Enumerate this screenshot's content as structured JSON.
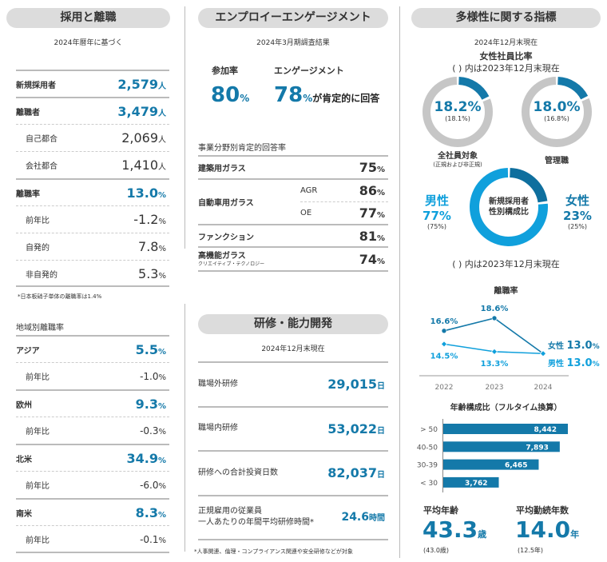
{
  "hiring": {
    "title": "採用と離職",
    "subtitle": "2024年暦年に基づく",
    "rows": [
      {
        "label": "新規採用者",
        "value": "2,579",
        "unit": "人",
        "style": "main"
      },
      {
        "label": "離職者",
        "value": "3,479",
        "unit": "人",
        "style": "main"
      },
      {
        "label": "自己都合",
        "value": "2,069",
        "unit": "人",
        "style": "sub"
      },
      {
        "label": "会社都合",
        "value": "1,410",
        "unit": "人",
        "style": "sub"
      },
      {
        "label": "離職率",
        "value": "13.0",
        "unit": "%",
        "style": "main"
      },
      {
        "label": "前年比",
        "value": "-1.2",
        "unit": "%",
        "style": "sub"
      },
      {
        "label": "自発的",
        "value": "7.8",
        "unit": "%",
        "style": "sub"
      },
      {
        "label": "非自発的",
        "value": "5.3",
        "unit": "%",
        "style": "sub"
      }
    ],
    "note": "*日本板硝子単体の離職率は1.4%",
    "region_title": "地域別離職率",
    "regions": [
      {
        "label": "アジア",
        "value": "5.5",
        "unit": "%",
        "yoy_label": "前年比",
        "yoy": "-1.0",
        "yoy_unit": "%"
      },
      {
        "label": "欧州",
        "value": "9.3",
        "unit": "%",
        "yoy_label": "前年比",
        "yoy": "-0.3",
        "yoy_unit": "%"
      },
      {
        "label": "北米",
        "value": "34.9",
        "unit": "%",
        "yoy_label": "前年比",
        "yoy": "-6.0",
        "yoy_unit": "%"
      },
      {
        "label": "南米",
        "value": "8.3",
        "unit": "%",
        "yoy_label": "前年比",
        "yoy": "-0.1",
        "yoy_unit": "%"
      }
    ]
  },
  "engagement": {
    "title": "エンプロイーエンゲージメント",
    "subtitle": "2024年3月期調査結果",
    "participation_label": "参加率",
    "participation": "80",
    "participation_unit": "%",
    "engagement_label": "エンゲージメント",
    "engagement": "78",
    "engagement_unit": "%",
    "engagement_suffix": "が肯定的に回答",
    "table_title": "事業分野別肯定的回答率",
    "building": {
      "label": "建築用ガラス",
      "value": "75",
      "unit": "%"
    },
    "auto": {
      "label": "自動車用ガラス",
      "agr_label": "AGR",
      "agr": "86",
      "oe_label": "OE",
      "oe": "77",
      "unit": "%"
    },
    "function": {
      "label": "ファンクション",
      "value": "81",
      "unit": "%"
    },
    "tg": {
      "label": "高機能ガラス",
      "sublabel": "クリエイティブ・テクノロジー",
      "value": "74",
      "unit": "%"
    }
  },
  "training": {
    "title": "研修・能力開発",
    "subtitle": "2024年12月末現在",
    "rows": [
      {
        "label": "職場外研修",
        "value": "29,015",
        "unit": "日"
      },
      {
        "label": "職場内研修",
        "value": "53,022",
        "unit": "日"
      },
      {
        "label": "研修への合計投資日数",
        "value": "82,037",
        "unit": "日"
      },
      {
        "label": "正規雇用の従業員",
        "label2": "一人あたりの年間平均研修時間*",
        "value": "24.6",
        "unit": "時間"
      }
    ],
    "note": "*人事関連、倫理・コンプライアンス関連や安全研修などが対象"
  },
  "diversity": {
    "title": "多様性に関する指標",
    "subtitle": "2024年12月末現在",
    "female_ratio_title": "女性社員比率",
    "prev_note": "( ) 内は2023年12月末現在",
    "all": {
      "value": "18.2%",
      "prev": "(18.1%)",
      "fraction": 0.182,
      "label": "全社員対象",
      "sublabel": "(正規および非正規)"
    },
    "mgmt": {
      "value": "18.0%",
      "prev": "(16.8%)",
      "fraction": 0.18,
      "label": "管理職"
    },
    "new_hires": {
      "center1": "新規採用者",
      "center2": "性別構成比",
      "male_label": "男性",
      "male": "77%",
      "male_prev": "(75%)",
      "female_label": "女性",
      "female": "23%",
      "female_prev": "(25%)",
      "female_fraction": 0.23
    },
    "new_hires_note": "( ) 内は2023年12月末現在",
    "avg_age": {
      "label": "平均年齢",
      "value": "43.3",
      "unit": "歳",
      "prev": "(43.0歳)"
    },
    "avg_tenure": {
      "label": "平均勤続年数",
      "value": "14.0",
      "unit": "年",
      "prev": "(12.5年)"
    }
  },
  "colors": {
    "dark_blue": "#1479a9",
    "light_blue": "#10a0dc",
    "ring_gray": "#c6c6c6",
    "pill_gray": "#dcdcdc"
  },
  "chart_data": [
    {
      "type": "line",
      "title": "離職率",
      "categories": [
        "2022",
        "2023",
        "2024"
      ],
      "series": [
        {
          "name": "女性",
          "values": [
            16.6,
            18.6,
            13.0
          ],
          "labels": [
            "16.6%",
            "18.6%",
            "13.0"
          ],
          "color": "#1479a9"
        },
        {
          "name": "男性",
          "values": [
            14.5,
            13.3,
            13.0
          ],
          "labels": [
            "14.5%",
            "13.3%",
            "13.0"
          ],
          "color": "#10a0dc"
        }
      ],
      "end_unit": "%"
    },
    {
      "type": "bar",
      "title": "年齢構成比（フルタイム換算）",
      "categories": [
        "> 50",
        "40-50",
        "30-39",
        "< 30"
      ],
      "values": [
        8442,
        7893,
        6465,
        3762
      ],
      "labels": [
        "8,442",
        "7,893",
        "6,465",
        "3,762"
      ],
      "color": "#1479a9"
    }
  ]
}
